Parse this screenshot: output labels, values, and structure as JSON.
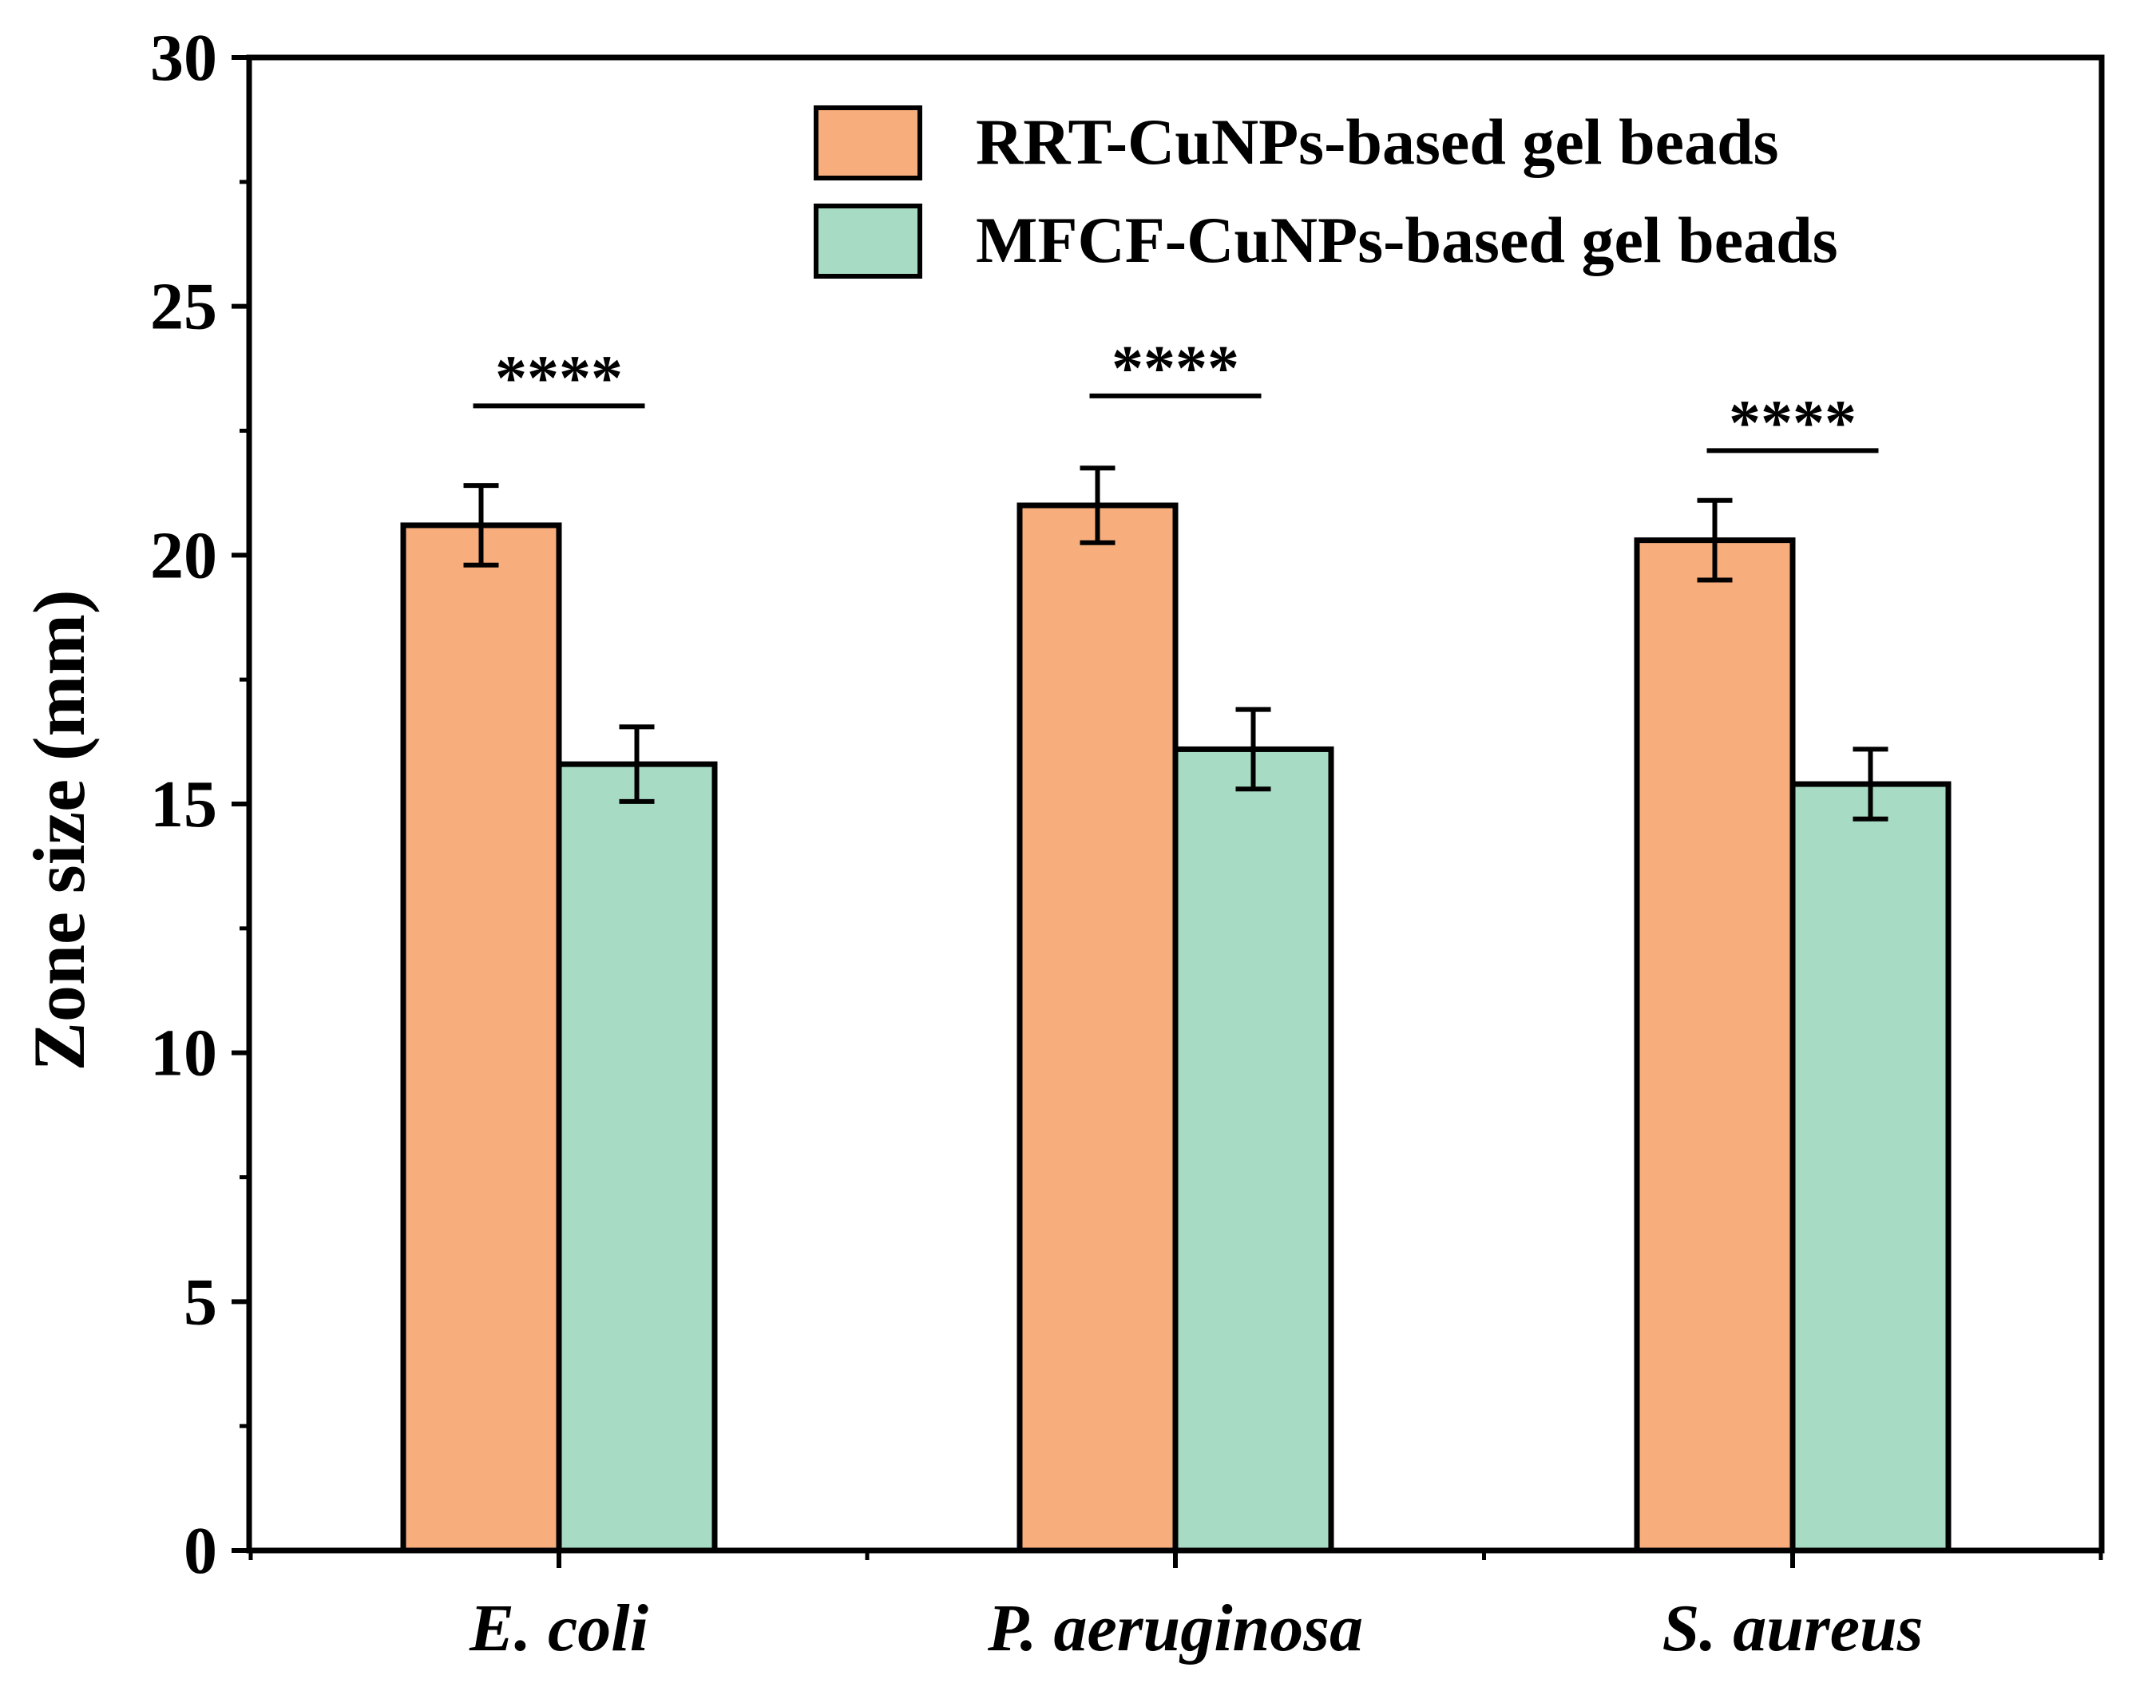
{
  "chart_data": {
    "type": "bar",
    "title": "",
    "xlabel": "",
    "ylabel": "Zone size (mm)",
    "ylim": [
      0,
      30
    ],
    "yticks": [
      "0",
      "5",
      "10",
      "15",
      "20",
      "25",
      "30"
    ],
    "categories": [
      "E. coli",
      "P. aeruginosa",
      "S. aureus"
    ],
    "series": [
      {
        "name": "RRT-CuNPs-based gel beads",
        "color": "#f8ae7c",
        "values": [
          20.6,
          21.0,
          20.3
        ],
        "errors": [
          0.8,
          0.75,
          0.8
        ]
      },
      {
        "name": "MFCF-CuNPs-based gel beads",
        "color": "#a8dbc4",
        "values": [
          15.8,
          16.1,
          15.4
        ],
        "errors": [
          0.75,
          0.8,
          0.7
        ]
      }
    ],
    "significance": [
      {
        "category": "E. coli",
        "label": "****",
        "y": 23.0
      },
      {
        "category": "P. aeruginosa",
        "label": "****",
        "y": 23.2
      },
      {
        "category": "S. aureus",
        "label": "****",
        "y": 22.1
      }
    ],
    "legend_position": "top-right",
    "grid": false
  }
}
